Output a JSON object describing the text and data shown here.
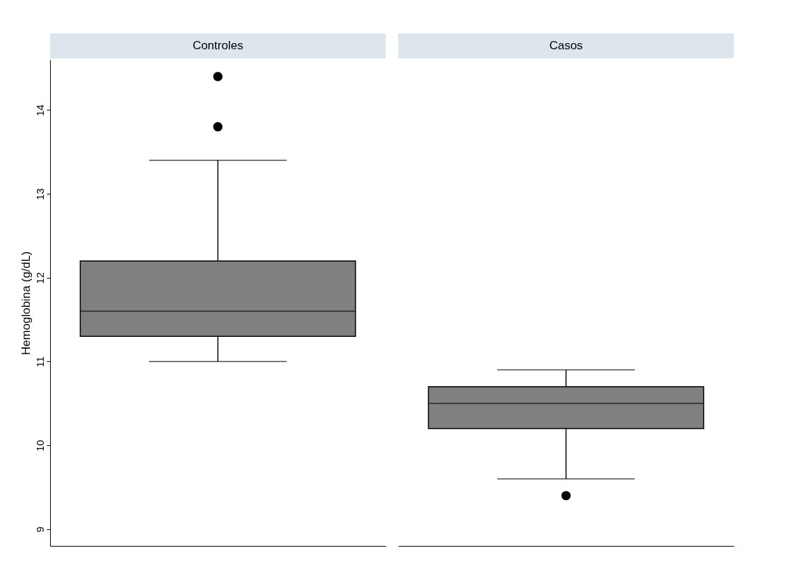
{
  "chart_data": {
    "type": "box",
    "ylabel": "Hemoglobina (g/dL)",
    "categories": [
      "Controles",
      "Casos"
    ],
    "series": [
      {
        "color": "#808080",
        "boxes": [
          {
            "low": 11.0,
            "q1": 11.3,
            "median": 11.6,
            "q3": 12.2,
            "high": 13.4,
            "outliers": [
              13.8,
              14.4
            ]
          },
          {
            "low": 9.6,
            "q1": 10.2,
            "median": 10.5,
            "q3": 10.7,
            "high": 10.9,
            "outliers": [
              9.4
            ]
          }
        ]
      }
    ],
    "ylim": [
      8.8,
      14.6
    ],
    "yticks": [
      9,
      10,
      11,
      12,
      13,
      14
    ],
    "grid": false
  }
}
